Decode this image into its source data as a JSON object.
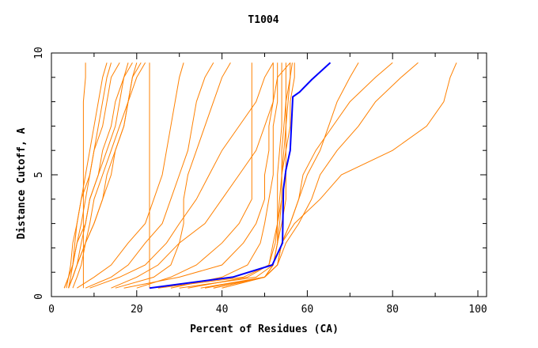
{
  "chart_data": {
    "type": "line",
    "title": "T1004",
    "xlabel": "Percent of Residues (CA)",
    "ylabel": "Distance Cutoff, A",
    "xlim": [
      0,
      102
    ],
    "ylim": [
      0,
      10
    ],
    "xticks": [
      "0",
      "20",
      "40",
      "60",
      "80",
      "100"
    ],
    "yticks": [
      "0",
      "5",
      "10"
    ],
    "grid": false,
    "colors": {
      "models": "#ff8000",
      "highlight": "#0000ff"
    },
    "y": [
      0.35,
      0.8,
      1.3,
      2.2,
      3,
      4,
      5,
      6,
      7,
      8,
      9,
      9.6
    ],
    "highlight_series": {
      "points": [
        [
          23,
          0.35
        ],
        [
          42.5,
          0.8
        ],
        [
          51.8,
          1.3
        ],
        [
          54.2,
          2.2
        ],
        [
          54.4,
          4.4
        ],
        [
          55,
          5.2
        ],
        [
          56,
          6
        ],
        [
          56.6,
          8.2
        ],
        [
          58.2,
          8.4
        ],
        [
          61,
          8.9
        ],
        [
          65.4,
          9.6
        ]
      ]
    },
    "series": [
      {
        "x": [
          3,
          4,
          5,
          5.5,
          6,
          7,
          8,
          9,
          10,
          11,
          12,
          13
        ]
      },
      {
        "x": [
          4,
          5,
          6,
          7,
          8,
          9,
          11,
          12,
          14,
          15,
          17,
          18
        ]
      },
      {
        "x": [
          5,
          6,
          7,
          8,
          9,
          10,
          12,
          14,
          16,
          18,
          19,
          21
        ]
      },
      {
        "x": [
          3.5,
          4,
          4.5,
          5,
          6,
          7,
          9,
          10,
          12,
          13,
          14,
          16
        ]
      },
      {
        "x": [
          4,
          4.5,
          5,
          6,
          7,
          8,
          9,
          10,
          11,
          12,
          13,
          14
        ]
      },
      {
        "x": [
          7.5,
          7.5,
          7.5,
          7.5,
          7.5,
          7.5,
          7.5,
          7.5,
          7.5,
          7.5,
          8,
          8
        ]
      },
      {
        "x": [
          4,
          5,
          6,
          8,
          10,
          12,
          14,
          15,
          17,
          18,
          19,
          20
        ]
      },
      {
        "x": [
          4,
          5,
          6,
          8,
          10,
          12,
          13,
          15,
          17,
          18,
          20,
          22
        ]
      },
      {
        "x": [
          3,
          4,
          5,
          6,
          8,
          9,
          11,
          13,
          15,
          16,
          17,
          19
        ]
      },
      {
        "x": [
          6,
          10,
          14,
          18,
          22,
          24,
          26,
          27,
          28,
          29,
          30,
          31
        ]
      },
      {
        "x": [
          8,
          14,
          18,
          22,
          26,
          28,
          30,
          32,
          33,
          34,
          36,
          38
        ]
      },
      {
        "x": [
          15,
          24,
          28,
          30,
          31,
          31,
          32,
          34,
          36,
          38,
          40,
          42
        ]
      },
      {
        "x": [
          9,
          16,
          22,
          27,
          30,
          34,
          37,
          40,
          44,
          48,
          50,
          52
        ]
      },
      {
        "x": [
          14,
          20,
          25,
          30,
          36,
          40,
          44,
          48,
          50,
          52,
          53,
          56
        ]
      },
      {
        "x": [
          23,
          23,
          23,
          23,
          23,
          23,
          23,
          23,
          23,
          23,
          23,
          23
        ]
      },
      {
        "x": [
          20,
          28,
          34,
          40,
          44,
          47,
          47,
          47,
          47,
          47,
          47,
          47
        ]
      },
      {
        "x": [
          17,
          30,
          40,
          45,
          48,
          50,
          50,
          51,
          51,
          52,
          52,
          52
        ]
      },
      {
        "x": [
          28,
          40,
          46,
          49,
          50,
          51,
          52,
          52,
          52,
          53,
          53,
          53
        ]
      },
      {
        "x": [
          25,
          45,
          51,
          52,
          53,
          53,
          53,
          53.5,
          54,
          54,
          54,
          54
        ]
      },
      {
        "x": [
          30,
          48,
          52,
          53,
          53.5,
          54,
          54,
          54,
          54.5,
          55,
          55,
          55
        ]
      },
      {
        "x": [
          35,
          50,
          52,
          53,
          54,
          55,
          55,
          55,
          56,
          56,
          57,
          57
        ]
      },
      {
        "x": [
          38,
          50,
          52,
          53,
          53,
          54,
          54,
          55,
          55,
          55,
          56,
          56
        ]
      },
      {
        "x": [
          32,
          46,
          51,
          52.5,
          53,
          53.5,
          54,
          54.5,
          55,
          55.5,
          56,
          56.5
        ]
      },
      {
        "x": [
          36,
          50,
          53,
          54,
          56,
          58,
          60,
          63,
          65,
          67,
          70,
          72
        ]
      },
      {
        "x": [
          38,
          50,
          53,
          54,
          56,
          58,
          59,
          62,
          66,
          70,
          76,
          80
        ]
      },
      {
        "x": [
          40,
          50,
          53,
          55,
          58,
          61,
          63,
          67,
          72,
          76,
          82,
          86
        ]
      },
      {
        "x": [
          40,
          50,
          53,
          54,
          57,
          63,
          68,
          80,
          88,
          92,
          93.5,
          95
        ]
      }
    ]
  }
}
